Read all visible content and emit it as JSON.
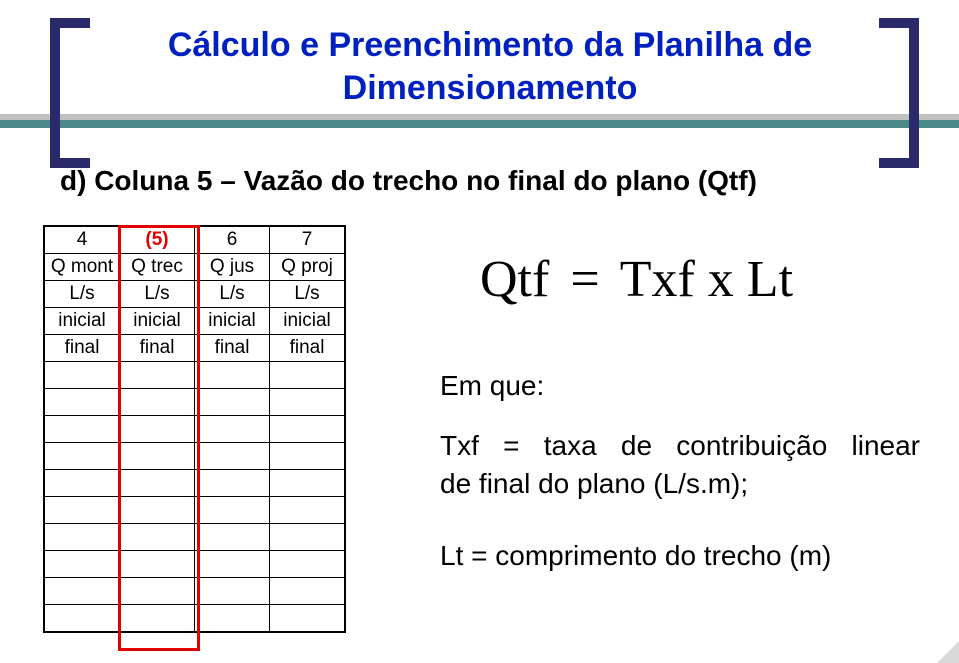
{
  "title_line1": "Cálculo e Preenchimento da Planilha de",
  "title_line2": "Dimensionamento",
  "subtitle": "d) Coluna 5 – Vazão do trecho no final do plano (Qtf)",
  "table": {
    "header_nums": [
      "4",
      "(5)",
      "6",
      "7"
    ],
    "header_names": [
      "Q mont",
      "Q trec",
      "Q jus",
      "Q proj"
    ],
    "header_units": [
      "L/s",
      "L/s",
      "L/s",
      "L/s"
    ],
    "row_initial": [
      "inicial",
      "inicial",
      "inicial",
      "inicial"
    ],
    "row_final": [
      "final",
      "final",
      "final",
      "final"
    ],
    "empty_rows": 10,
    "highlight_col_index": 1,
    "highlight_color": "#e00000",
    "border_color": "#000000",
    "cell_bg": "#ffffff"
  },
  "formula": {
    "lhs": "Qtf",
    "eq": "=",
    "rhs": "Txf  x Lt"
  },
  "legend": {
    "emque": "Em que:",
    "l1": "Txf = taxa de contribuição linear",
    "l2": "de final do plano (L/s.m);",
    "l3": "Lt = comprimento do trecho (m)"
  },
  "colors": {
    "bracket": "#2a2a6a",
    "title": "#0020c0",
    "band_grey": "#c0c0c0",
    "band_teal": "#4a8a8a",
    "text": "#000000",
    "bg": "#ffffff"
  },
  "fontsizes": {
    "title": 34,
    "subtitle": 28,
    "table": 19,
    "formula": 52,
    "body": 28
  }
}
